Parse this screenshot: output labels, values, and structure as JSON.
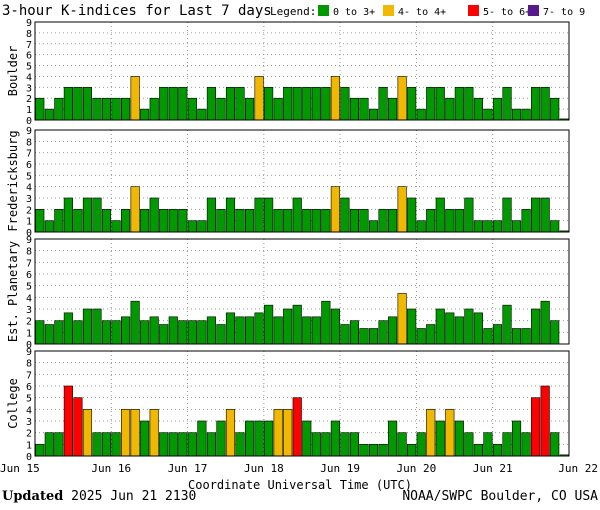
{
  "title": "3-hour K-indices for Last 7 days",
  "legend": {
    "label": "Legend:",
    "items": [
      {
        "label": "0 to 3+",
        "color": "#009900"
      },
      {
        "label": "4- to 4+",
        "color": "#f0b800"
      },
      {
        "label": "5- to 6+",
        "color": "#ff0000"
      },
      {
        "label": "7- to 9",
        "color": "#551a8b"
      }
    ]
  },
  "footer": {
    "updated_label": "Updated",
    "updated_value": "2025 Jun 21 2130",
    "source": "NOAA/SWPC Boulder, CO USA"
  },
  "chart_data": {
    "type": "bar",
    "xlabel": "Coordinate Universal Time (UTC)",
    "x_ticks": [
      "Jun 15",
      "Jun 16",
      "Jun 17",
      "Jun 18",
      "Jun 19",
      "Jun 20",
      "Jun 21",
      "Jun 22"
    ],
    "y_ticks": [
      "0",
      "1",
      "2",
      "3",
      "4",
      "5",
      "6",
      "7",
      "8",
      "9"
    ],
    "ylim": [
      0,
      9
    ],
    "grid": "dotted",
    "panels": [
      {
        "name": "Boulder",
        "values": [
          2,
          1,
          2,
          3,
          3,
          3,
          2,
          2,
          2,
          2,
          4,
          1,
          2,
          3,
          3,
          3,
          2,
          1,
          3,
          2,
          3,
          3,
          2,
          4,
          3,
          2,
          3,
          3,
          3,
          3,
          3,
          4,
          3,
          2,
          2,
          1,
          3,
          2,
          4,
          3,
          1,
          3,
          3,
          2,
          3,
          3,
          2,
          1,
          2,
          3,
          1,
          1,
          3,
          3,
          2,
          0.1
        ]
      },
      {
        "name": "Fredericksburg",
        "values": [
          2,
          1,
          2,
          3,
          2,
          3,
          3,
          2,
          1,
          2,
          4,
          2,
          3,
          2,
          2,
          2,
          1,
          1,
          3,
          2,
          3,
          2,
          2,
          3,
          3,
          2,
          2,
          3,
          2,
          2,
          2,
          4,
          3,
          2,
          2,
          1,
          2,
          2,
          4,
          3,
          1,
          2,
          3,
          2,
          2,
          3,
          1,
          1,
          1,
          3,
          1,
          2,
          3,
          3,
          1,
          0.1
        ]
      },
      {
        "name": "Est. Planetary",
        "values": [
          2,
          1.67,
          2,
          2.67,
          2,
          3,
          3,
          2,
          2,
          2.33,
          3.67,
          2,
          2.33,
          1.67,
          2.33,
          2,
          2,
          2,
          2.33,
          1.67,
          2.67,
          2.33,
          2.33,
          2.67,
          3.33,
          2.33,
          3,
          3.33,
          2.33,
          2.33,
          3.67,
          3,
          1.67,
          2,
          1.33,
          1.33,
          2,
          2.33,
          4.33,
          3,
          1.33,
          1.67,
          3,
          2.67,
          2.33,
          3,
          2.67,
          1.33,
          1.67,
          3.33,
          1.33,
          1.33,
          3,
          3.67,
          2
        ]
      },
      {
        "name": "College",
        "values": [
          1,
          2,
          2,
          6,
          5,
          4,
          2,
          2,
          2,
          4,
          4,
          3,
          4,
          2,
          2,
          2,
          2,
          3,
          2,
          3,
          4,
          2,
          3,
          3,
          3,
          4,
          4,
          5,
          3,
          2,
          2,
          3,
          2,
          2,
          1,
          1,
          1,
          3,
          2,
          1,
          2,
          4,
          3,
          4,
          3,
          2,
          1,
          2,
          1,
          2,
          3,
          2,
          5,
          6,
          2,
          0.1
        ]
      }
    ]
  }
}
